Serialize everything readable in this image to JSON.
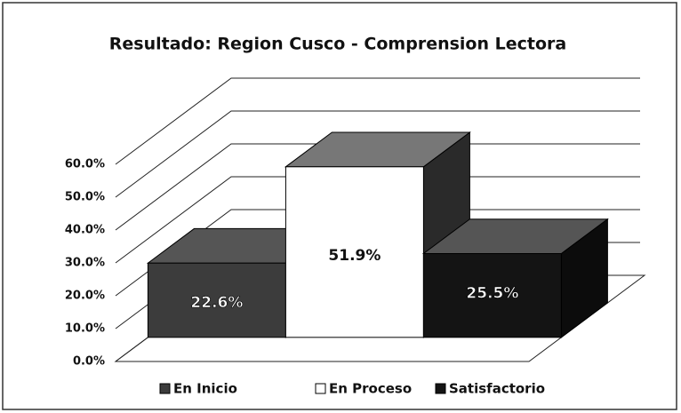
{
  "chart_data": {
    "type": "bar3d",
    "title": "Resultado: Region Cusco - Comprension Lectora",
    "categories": [
      "En Inicio",
      "En Proceso",
      "Satisfactorio"
    ],
    "values": [
      22.6,
      51.9,
      25.5
    ],
    "value_labels": [
      "22.6%",
      "51.9%",
      "25.5%"
    ],
    "colors": [
      "#3c3c3c",
      "#ffffff",
      "#141414"
    ],
    "ylim": [
      0,
      60
    ],
    "yticks": [
      {
        "value": 0,
        "label": "0.0%"
      },
      {
        "value": 10,
        "label": "10.0%"
      },
      {
        "value": 20,
        "label": "20.0%"
      },
      {
        "value": 30,
        "label": "30.0%"
      },
      {
        "value": 40,
        "label": "40.0%"
      },
      {
        "value": 50,
        "label": "50.0%"
      },
      {
        "value": 60,
        "label": "60.0%"
      }
    ],
    "grid": true,
    "legend": "bottom"
  }
}
